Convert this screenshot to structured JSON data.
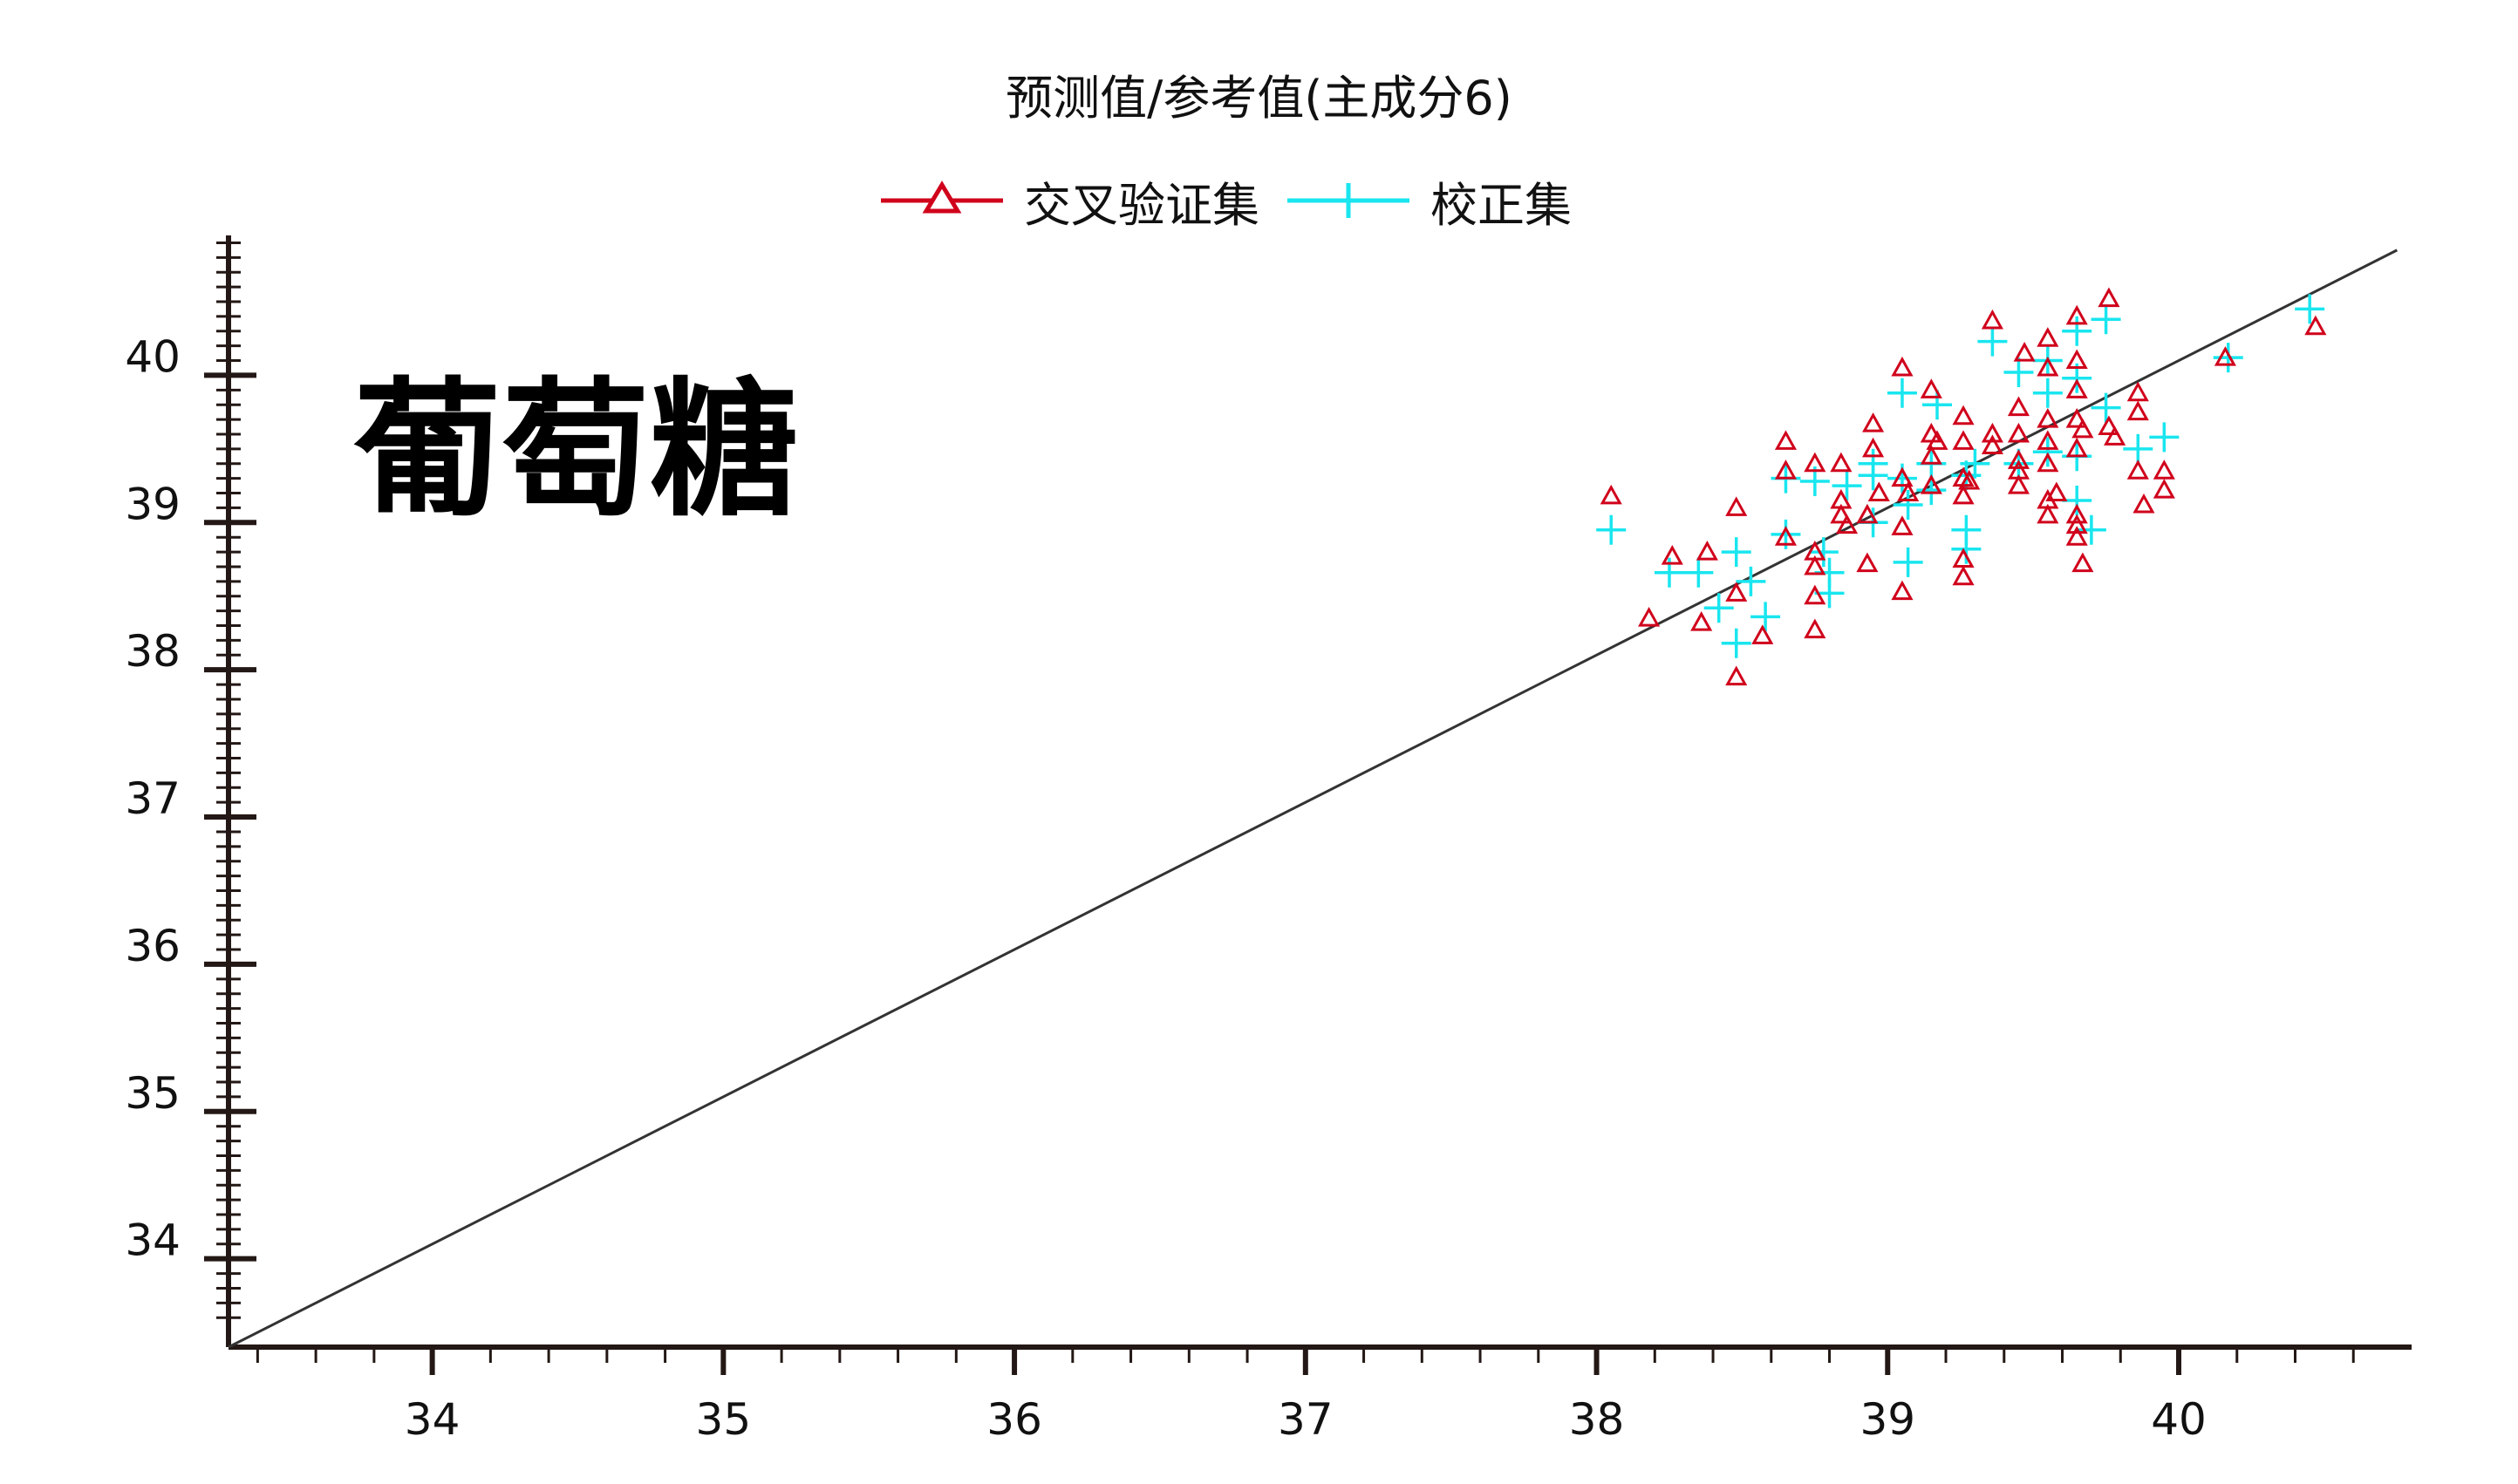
{
  "chart_data": {
    "type": "scatter",
    "title": "预测值/参考值(主成分6)",
    "annotation": "葡萄糖",
    "xlim": [
      33.3,
      40.8
    ],
    "ylim": [
      33.4,
      40.95
    ],
    "x_ticks": [
      34,
      35,
      36,
      37,
      38,
      39,
      40
    ],
    "y_ticks": [
      34,
      35,
      36,
      37,
      38,
      39,
      40
    ],
    "grid": false,
    "legend_position": "top-center",
    "reference_line": {
      "x": [
        33.3,
        40.75
      ],
      "y": [
        33.4,
        40.85
      ],
      "color": "#333333"
    },
    "series": [
      {
        "name": "交叉验证集",
        "marker": "triangle",
        "color": "#d0021b",
        "points": [
          [
            38.05,
            39.18
          ],
          [
            38.18,
            38.35
          ],
          [
            38.26,
            38.77
          ],
          [
            38.36,
            38.32
          ],
          [
            38.38,
            38.8
          ],
          [
            38.48,
            39.1
          ],
          [
            38.48,
            38.52
          ],
          [
            38.48,
            37.95
          ],
          [
            38.57,
            38.23
          ],
          [
            38.65,
            39.55
          ],
          [
            38.65,
            39.35
          ],
          [
            38.65,
            38.9
          ],
          [
            38.75,
            39.4
          ],
          [
            38.75,
            38.8
          ],
          [
            38.75,
            38.7
          ],
          [
            38.75,
            38.5
          ],
          [
            38.75,
            38.27
          ],
          [
            38.84,
            39.4
          ],
          [
            38.84,
            39.15
          ],
          [
            38.84,
            39.05
          ],
          [
            38.86,
            38.98
          ],
          [
            38.93,
            39.05
          ],
          [
            38.93,
            38.72
          ],
          [
            38.95,
            39.67
          ],
          [
            38.95,
            39.5
          ],
          [
            38.97,
            39.2
          ],
          [
            39.05,
            40.05
          ],
          [
            39.05,
            39.3
          ],
          [
            39.05,
            38.97
          ],
          [
            39.05,
            38.53
          ],
          [
            39.07,
            39.2
          ],
          [
            39.15,
            39.9
          ],
          [
            39.15,
            39.6
          ],
          [
            39.15,
            39.45
          ],
          [
            39.15,
            39.25
          ],
          [
            39.17,
            39.55
          ],
          [
            39.26,
            39.72
          ],
          [
            39.26,
            39.55
          ],
          [
            39.26,
            39.3
          ],
          [
            39.26,
            39.18
          ],
          [
            39.26,
            38.75
          ],
          [
            39.26,
            38.63
          ],
          [
            39.28,
            39.28
          ],
          [
            39.36,
            40.37
          ],
          [
            39.36,
            39.6
          ],
          [
            39.36,
            39.52
          ],
          [
            39.45,
            39.78
          ],
          [
            39.45,
            39.6
          ],
          [
            39.45,
            39.42
          ],
          [
            39.45,
            39.35
          ],
          [
            39.45,
            39.25
          ],
          [
            39.47,
            40.15
          ],
          [
            39.55,
            40.25
          ],
          [
            39.55,
            40.05
          ],
          [
            39.55,
            39.7
          ],
          [
            39.55,
            39.55
          ],
          [
            39.55,
            39.4
          ],
          [
            39.55,
            39.15
          ],
          [
            39.55,
            39.05
          ],
          [
            39.58,
            39.2
          ],
          [
            39.65,
            40.4
          ],
          [
            39.65,
            40.1
          ],
          [
            39.65,
            39.9
          ],
          [
            39.65,
            39.7
          ],
          [
            39.65,
            39.5
          ],
          [
            39.65,
            39.05
          ],
          [
            39.65,
            38.98
          ],
          [
            39.65,
            38.9
          ],
          [
            39.67,
            38.72
          ],
          [
            39.67,
            39.63
          ],
          [
            39.76,
            40.52
          ],
          [
            39.76,
            39.65
          ],
          [
            39.78,
            39.58
          ],
          [
            39.86,
            39.88
          ],
          [
            39.86,
            39.75
          ],
          [
            39.86,
            39.35
          ],
          [
            39.88,
            39.12
          ],
          [
            39.95,
            39.35
          ],
          [
            39.95,
            39.22
          ],
          [
            40.16,
            40.12
          ],
          [
            40.47,
            40.33
          ]
        ]
      },
      {
        "name": "校正集",
        "marker": "plus",
        "color": "#19e6ef",
        "points": [
          [
            38.05,
            38.95
          ],
          [
            38.25,
            38.66
          ],
          [
            38.35,
            38.66
          ],
          [
            38.42,
            38.42
          ],
          [
            38.48,
            38.8
          ],
          [
            38.48,
            38.18
          ],
          [
            38.53,
            38.6
          ],
          [
            38.58,
            38.36
          ],
          [
            38.65,
            39.3
          ],
          [
            38.65,
            38.92
          ],
          [
            38.75,
            39.28
          ],
          [
            38.78,
            38.8
          ],
          [
            38.8,
            38.52
          ],
          [
            38.8,
            38.66
          ],
          [
            38.86,
            39.25
          ],
          [
            38.95,
            39.4
          ],
          [
            38.95,
            39.32
          ],
          [
            38.95,
            39.0
          ],
          [
            39.05,
            39.88
          ],
          [
            39.05,
            39.3
          ],
          [
            39.07,
            39.12
          ],
          [
            39.07,
            38.73
          ],
          [
            39.15,
            39.4
          ],
          [
            39.15,
            39.22
          ],
          [
            39.17,
            39.8
          ],
          [
            39.27,
            39.32
          ],
          [
            39.27,
            38.95
          ],
          [
            39.27,
            38.82
          ],
          [
            39.3,
            39.4
          ],
          [
            39.36,
            40.23
          ],
          [
            39.45,
            40.02
          ],
          [
            39.45,
            39.4
          ],
          [
            39.55,
            40.1
          ],
          [
            39.55,
            39.88
          ],
          [
            39.55,
            39.48
          ],
          [
            39.65,
            40.3
          ],
          [
            39.65,
            39.98
          ],
          [
            39.65,
            39.45
          ],
          [
            39.65,
            39.15
          ],
          [
            39.7,
            38.95
          ],
          [
            39.75,
            40.38
          ],
          [
            39.75,
            39.78
          ],
          [
            39.86,
            39.5
          ],
          [
            39.95,
            39.58
          ],
          [
            40.17,
            40.12
          ],
          [
            40.45,
            40.45
          ]
        ]
      }
    ]
  }
}
